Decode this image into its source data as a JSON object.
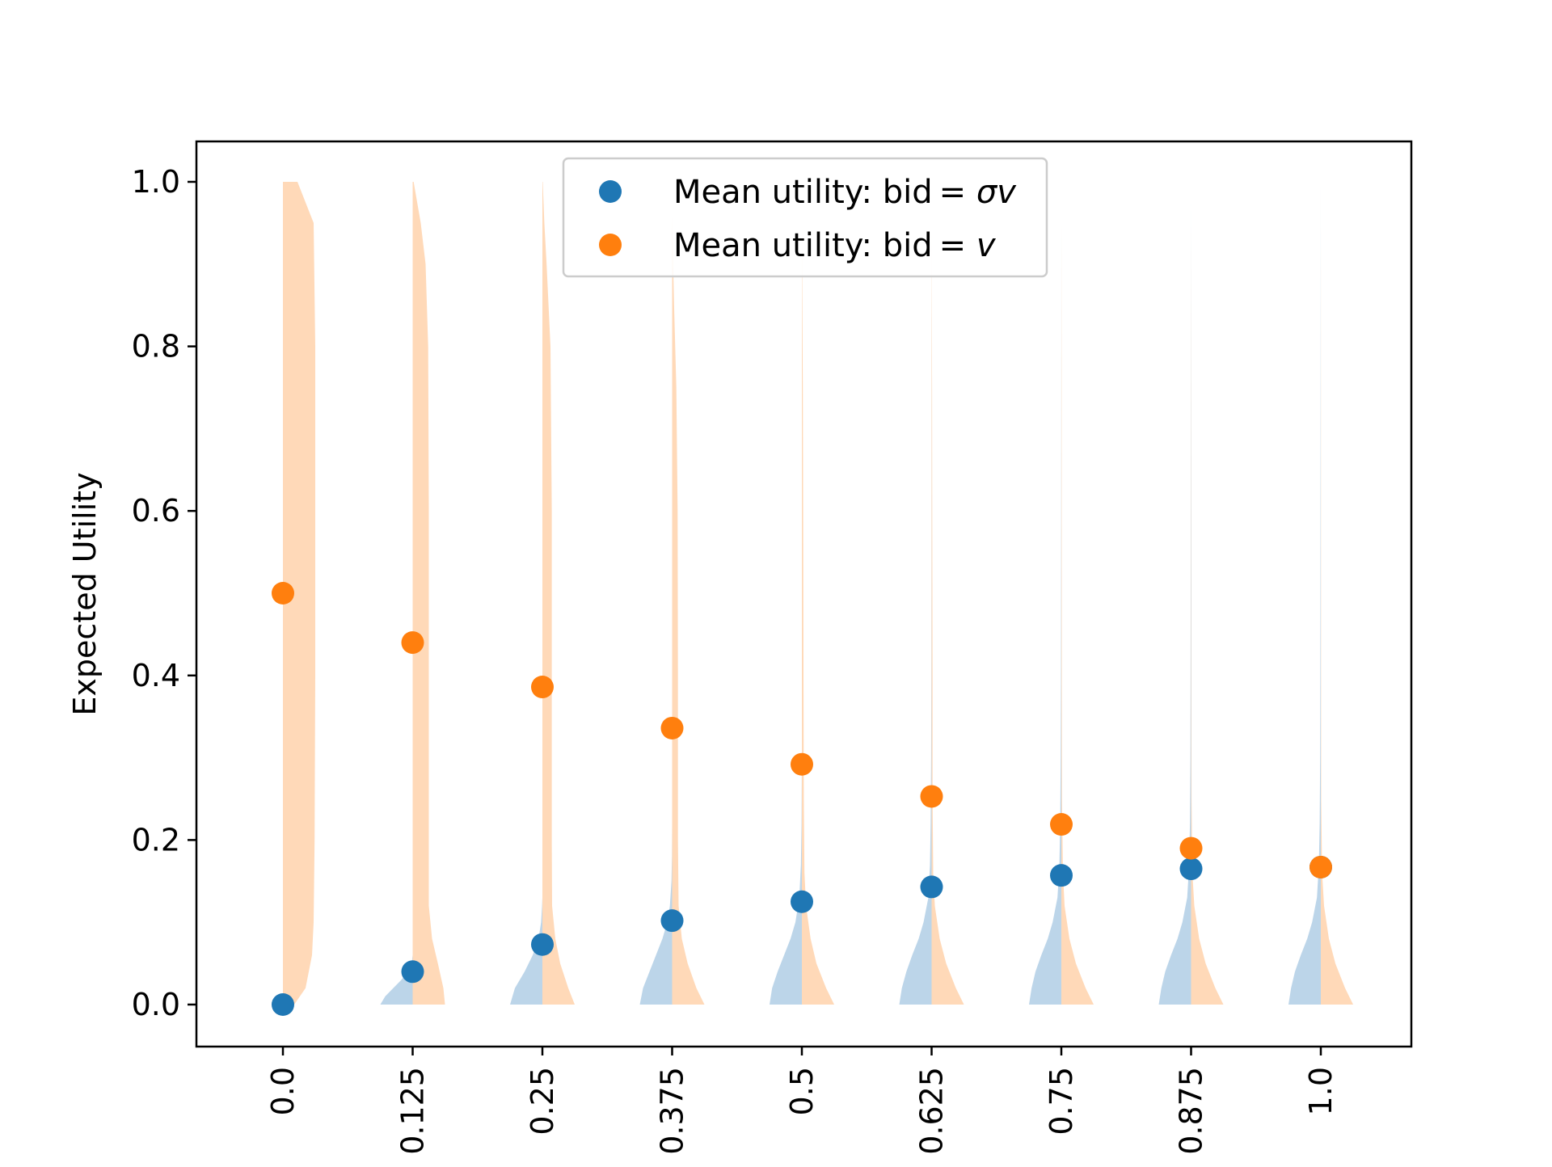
{
  "chart_data": {
    "type": "violin",
    "title": "",
    "xlabel": "",
    "ylabel": "Expected Utility",
    "categories": [
      "0.0",
      "0.125",
      "0.25",
      "0.375",
      "0.5",
      "0.625",
      "0.75",
      "0.875",
      "1.0"
    ],
    "ylim": [
      -0.05,
      1.05
    ],
    "yticks": [
      "0.0",
      "0.2",
      "0.4",
      "0.6",
      "0.8",
      "1.0"
    ],
    "x_tick_rotation": "vertical",
    "grid": false,
    "legend_position": "top-center",
    "series": [
      {
        "name_prefix": "Mean utility: bid",
        "name_formula": "= σv",
        "color": "#1f77b4",
        "violin_color": "#bcd5e9",
        "violin_side": "left",
        "means": [
          0.0,
          0.04,
          0.073,
          0.102,
          0.125,
          0.143,
          0.157,
          0.165,
          0.167
        ]
      },
      {
        "name_prefix": "Mean utility: bid",
        "name_formula": "= v",
        "color": "#ff7f0e",
        "violin_color": "#ffd9b8",
        "violin_side": "right",
        "means": [
          0.5,
          0.44,
          0.386,
          0.336,
          0.292,
          0.253,
          0.219,
          0.19,
          0.167
        ]
      }
    ],
    "violin_shapes": {
      "note_values": "density width as fraction of max half-width, sampled at y",
      "orange": [
        {
          "y": [
            0.0,
            0.02,
            0.06,
            0.1,
            0.2,
            0.4,
            0.6,
            0.8,
            0.95,
            1.0
          ],
          "w": [
            0.35,
            0.7,
            0.9,
            0.95,
            0.98,
            1.0,
            1.0,
            1.0,
            0.95,
            0.45
          ]
        },
        {
          "y": [
            0.0,
            0.02,
            0.05,
            0.08,
            0.12,
            0.2,
            0.4,
            0.6,
            0.8,
            0.9,
            0.95,
            1.0
          ],
          "w": [
            1.0,
            0.95,
            0.78,
            0.6,
            0.5,
            0.5,
            0.5,
            0.5,
            0.48,
            0.4,
            0.25,
            0.03
          ]
        },
        {
          "y": [
            0.0,
            0.02,
            0.05,
            0.08,
            0.12,
            0.2,
            0.4,
            0.6,
            0.8,
            0.9,
            0.95,
            1.0
          ],
          "w": [
            1.0,
            0.8,
            0.55,
            0.4,
            0.3,
            0.29,
            0.29,
            0.29,
            0.25,
            0.13,
            0.06,
            0.01
          ]
        },
        {
          "y": [
            0.0,
            0.02,
            0.05,
            0.08,
            0.12,
            0.2,
            0.4,
            0.6,
            0.75,
            0.85,
            0.92,
            0.96,
            1.0
          ],
          "w": [
            1.0,
            0.75,
            0.48,
            0.3,
            0.2,
            0.18,
            0.18,
            0.17,
            0.13,
            0.06,
            0.02,
            0.0,
            0.0
          ]
        },
        {
          "y": [
            0.0,
            0.02,
            0.05,
            0.08,
            0.12,
            0.16,
            0.25,
            0.4,
            0.6,
            0.75,
            0.88,
            0.95,
            1.0
          ],
          "w": [
            1.0,
            0.75,
            0.45,
            0.27,
            0.13,
            0.08,
            0.06,
            0.05,
            0.04,
            0.03,
            0.01,
            0.0,
            0.0
          ]
        },
        {
          "y": [
            0.0,
            0.02,
            0.05,
            0.08,
            0.12,
            0.16,
            0.25,
            0.4,
            0.6,
            0.75,
            0.88,
            0.95,
            1.0
          ],
          "w": [
            1.0,
            0.75,
            0.45,
            0.25,
            0.1,
            0.05,
            0.03,
            0.03,
            0.02,
            0.015,
            0.005,
            0.0,
            0.0
          ]
        },
        {
          "y": [
            0.0,
            0.02,
            0.05,
            0.08,
            0.12,
            0.16,
            0.25,
            0.4,
            0.6,
            0.75,
            0.88,
            0.95,
            1.0
          ],
          "w": [
            1.0,
            0.75,
            0.45,
            0.25,
            0.1,
            0.05,
            0.02,
            0.015,
            0.01,
            0.008,
            0.003,
            0.0,
            0.0
          ]
        },
        {
          "y": [
            0.0,
            0.02,
            0.05,
            0.08,
            0.12,
            0.16,
            0.25,
            0.4,
            0.6,
            0.75,
            0.88,
            0.95,
            1.0
          ],
          "w": [
            1.0,
            0.75,
            0.45,
            0.25,
            0.1,
            0.04,
            0.015,
            0.01,
            0.007,
            0.005,
            0.002,
            0.0,
            0.0
          ]
        },
        {
          "y": [
            0.0,
            0.02,
            0.05,
            0.08,
            0.12,
            0.16,
            0.25,
            0.4,
            0.6,
            0.75,
            0.88,
            0.95,
            1.0
          ],
          "w": [
            1.0,
            0.75,
            0.45,
            0.25,
            0.1,
            0.04,
            0.012,
            0.008,
            0.006,
            0.004,
            0.002,
            0.0,
            0.0
          ]
        }
      ],
      "blue": [
        null,
        {
          "y": [
            0.0,
            0.01,
            0.02,
            0.03,
            0.04,
            0.05,
            0.06
          ],
          "w": [
            1.0,
            0.85,
            0.6,
            0.35,
            0.15,
            0.03,
            0.0
          ]
        },
        {
          "y": [
            0.0,
            0.02,
            0.04,
            0.06,
            0.08,
            0.1,
            0.12,
            0.13
          ],
          "w": [
            1.0,
            0.85,
            0.55,
            0.3,
            0.12,
            0.04,
            0.01,
            0.0
          ]
        },
        {
          "y": [
            0.0,
            0.02,
            0.04,
            0.06,
            0.08,
            0.1,
            0.12,
            0.15,
            0.18,
            0.22
          ],
          "w": [
            1.0,
            0.9,
            0.7,
            0.5,
            0.3,
            0.15,
            0.07,
            0.02,
            0.005,
            0.0
          ]
        },
        {
          "y": [
            0.0,
            0.02,
            0.04,
            0.06,
            0.08,
            0.1,
            0.13,
            0.17,
            0.22,
            0.28,
            0.3
          ],
          "w": [
            1.0,
            0.92,
            0.75,
            0.55,
            0.35,
            0.2,
            0.08,
            0.03,
            0.01,
            0.003,
            0.0
          ]
        },
        {
          "y": [
            0.0,
            0.02,
            0.04,
            0.06,
            0.08,
            0.1,
            0.13,
            0.17,
            0.22,
            0.3,
            0.4,
            0.5,
            0.6,
            0.8,
            1.0
          ],
          "w": [
            1.0,
            0.92,
            0.78,
            0.6,
            0.4,
            0.25,
            0.1,
            0.05,
            0.03,
            0.015,
            0.008,
            0.005,
            0.003,
            0.001,
            0.0
          ]
        },
        {
          "y": [
            0.0,
            0.02,
            0.04,
            0.06,
            0.08,
            0.1,
            0.13,
            0.17,
            0.22,
            0.3,
            0.4,
            0.5,
            0.6,
            0.8,
            1.0
          ],
          "w": [
            1.0,
            0.92,
            0.8,
            0.62,
            0.42,
            0.27,
            0.12,
            0.06,
            0.035,
            0.02,
            0.012,
            0.009,
            0.006,
            0.002,
            0.0
          ]
        },
        {
          "y": [
            0.0,
            0.02,
            0.04,
            0.06,
            0.08,
            0.1,
            0.13,
            0.17,
            0.22,
            0.3,
            0.4,
            0.5,
            0.6,
            0.8,
            1.0
          ],
          "w": [
            1.0,
            0.92,
            0.8,
            0.62,
            0.42,
            0.27,
            0.12,
            0.06,
            0.035,
            0.02,
            0.015,
            0.012,
            0.009,
            0.004,
            0.0
          ]
        },
        {
          "y": [
            0.0,
            0.02,
            0.04,
            0.06,
            0.08,
            0.1,
            0.13,
            0.17,
            0.22,
            0.3,
            0.4,
            0.5,
            0.6,
            0.8,
            1.0
          ],
          "w": [
            1.0,
            0.92,
            0.8,
            0.62,
            0.42,
            0.27,
            0.12,
            0.06,
            0.035,
            0.02,
            0.015,
            0.012,
            0.01,
            0.005,
            0.0
          ]
        }
      ]
    }
  }
}
